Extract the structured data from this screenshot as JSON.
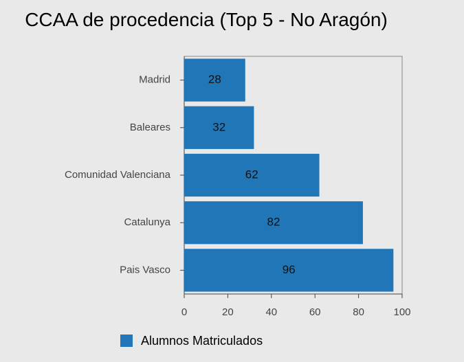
{
  "chart_data": {
    "type": "barh",
    "title": "CCAA de procedencia (Top 5 - No Aragón)",
    "categories": [
      "Madrid",
      "Baleares",
      "Comunidad Valenciana",
      "Catalunya",
      "Pais Vasco"
    ],
    "series": [
      {
        "name": "Alumnos Matriculados",
        "color": "#2176b8",
        "values": [
          28,
          32,
          62,
          82,
          96
        ]
      }
    ],
    "xlim": [
      0,
      100
    ],
    "xticks": [
      0,
      20,
      40,
      60,
      80,
      100
    ],
    "legend": "bottom"
  }
}
